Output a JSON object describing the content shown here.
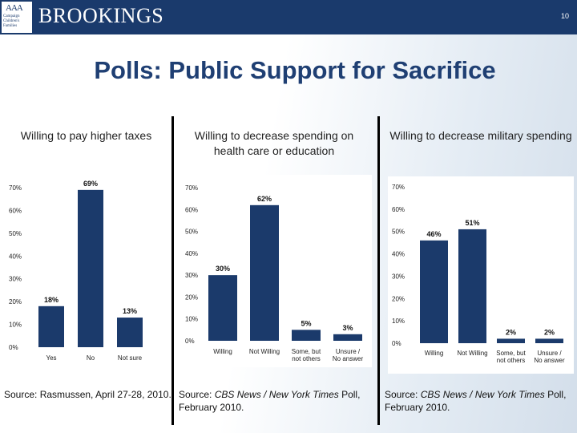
{
  "header": {
    "logo_columns": "AAA",
    "logo_text": "Campaign Children's Families",
    "brand": "BROOKINGS",
    "page_number": "10"
  },
  "slide": {
    "title": "Polls: Public Support for Sacrifice"
  },
  "colors": {
    "bar": "#1b3a6b",
    "header": "#1a3a6c",
    "title": "#1f3f73"
  },
  "chart_data": [
    {
      "type": "bar",
      "title": "Willing to pay higher taxes",
      "categories": [
        "Yes",
        "No",
        "Not sure"
      ],
      "values": [
        18,
        69,
        13
      ],
      "value_labels": [
        "18%",
        "69%",
        "13%"
      ],
      "yticks": [
        "0%",
        "10%",
        "20%",
        "30%",
        "40%",
        "50%",
        "60%",
        "70%"
      ],
      "ylim": [
        0,
        70
      ],
      "source": "Source: Rasmussen, April 27-28, 2010."
    },
    {
      "type": "bar",
      "title": "Willing to decrease spending on health care or education",
      "categories": [
        "Willing",
        "Not Willing",
        "Some, but not others",
        "Unsure / No answer"
      ],
      "values": [
        30,
        62,
        5,
        3
      ],
      "value_labels": [
        "30%",
        "62%",
        "5%",
        "3%"
      ],
      "yticks": [
        "0%",
        "10%",
        "20%",
        "30%",
        "40%",
        "50%",
        "60%",
        "70%"
      ],
      "ylim": [
        0,
        70
      ],
      "source_prefix": "Source: ",
      "source_italic": "CBS News / New York Times",
      "source_suffix": " Poll, February 2010."
    },
    {
      "type": "bar",
      "title": "Willing to decrease military spending",
      "categories": [
        "Willing",
        "Not Willing",
        "Some, but not others",
        "Unsure / No answer"
      ],
      "values": [
        46,
        51,
        2,
        2
      ],
      "value_labels": [
        "46%",
        "51%",
        "2%",
        "2%"
      ],
      "yticks": [
        "0%",
        "10%",
        "20%",
        "30%",
        "40%",
        "50%",
        "60%",
        "70%"
      ],
      "ylim": [
        0,
        70
      ],
      "source_prefix": "Source: ",
      "source_italic": "CBS News / New York Times",
      "source_suffix": " Poll, February 2010."
    }
  ]
}
